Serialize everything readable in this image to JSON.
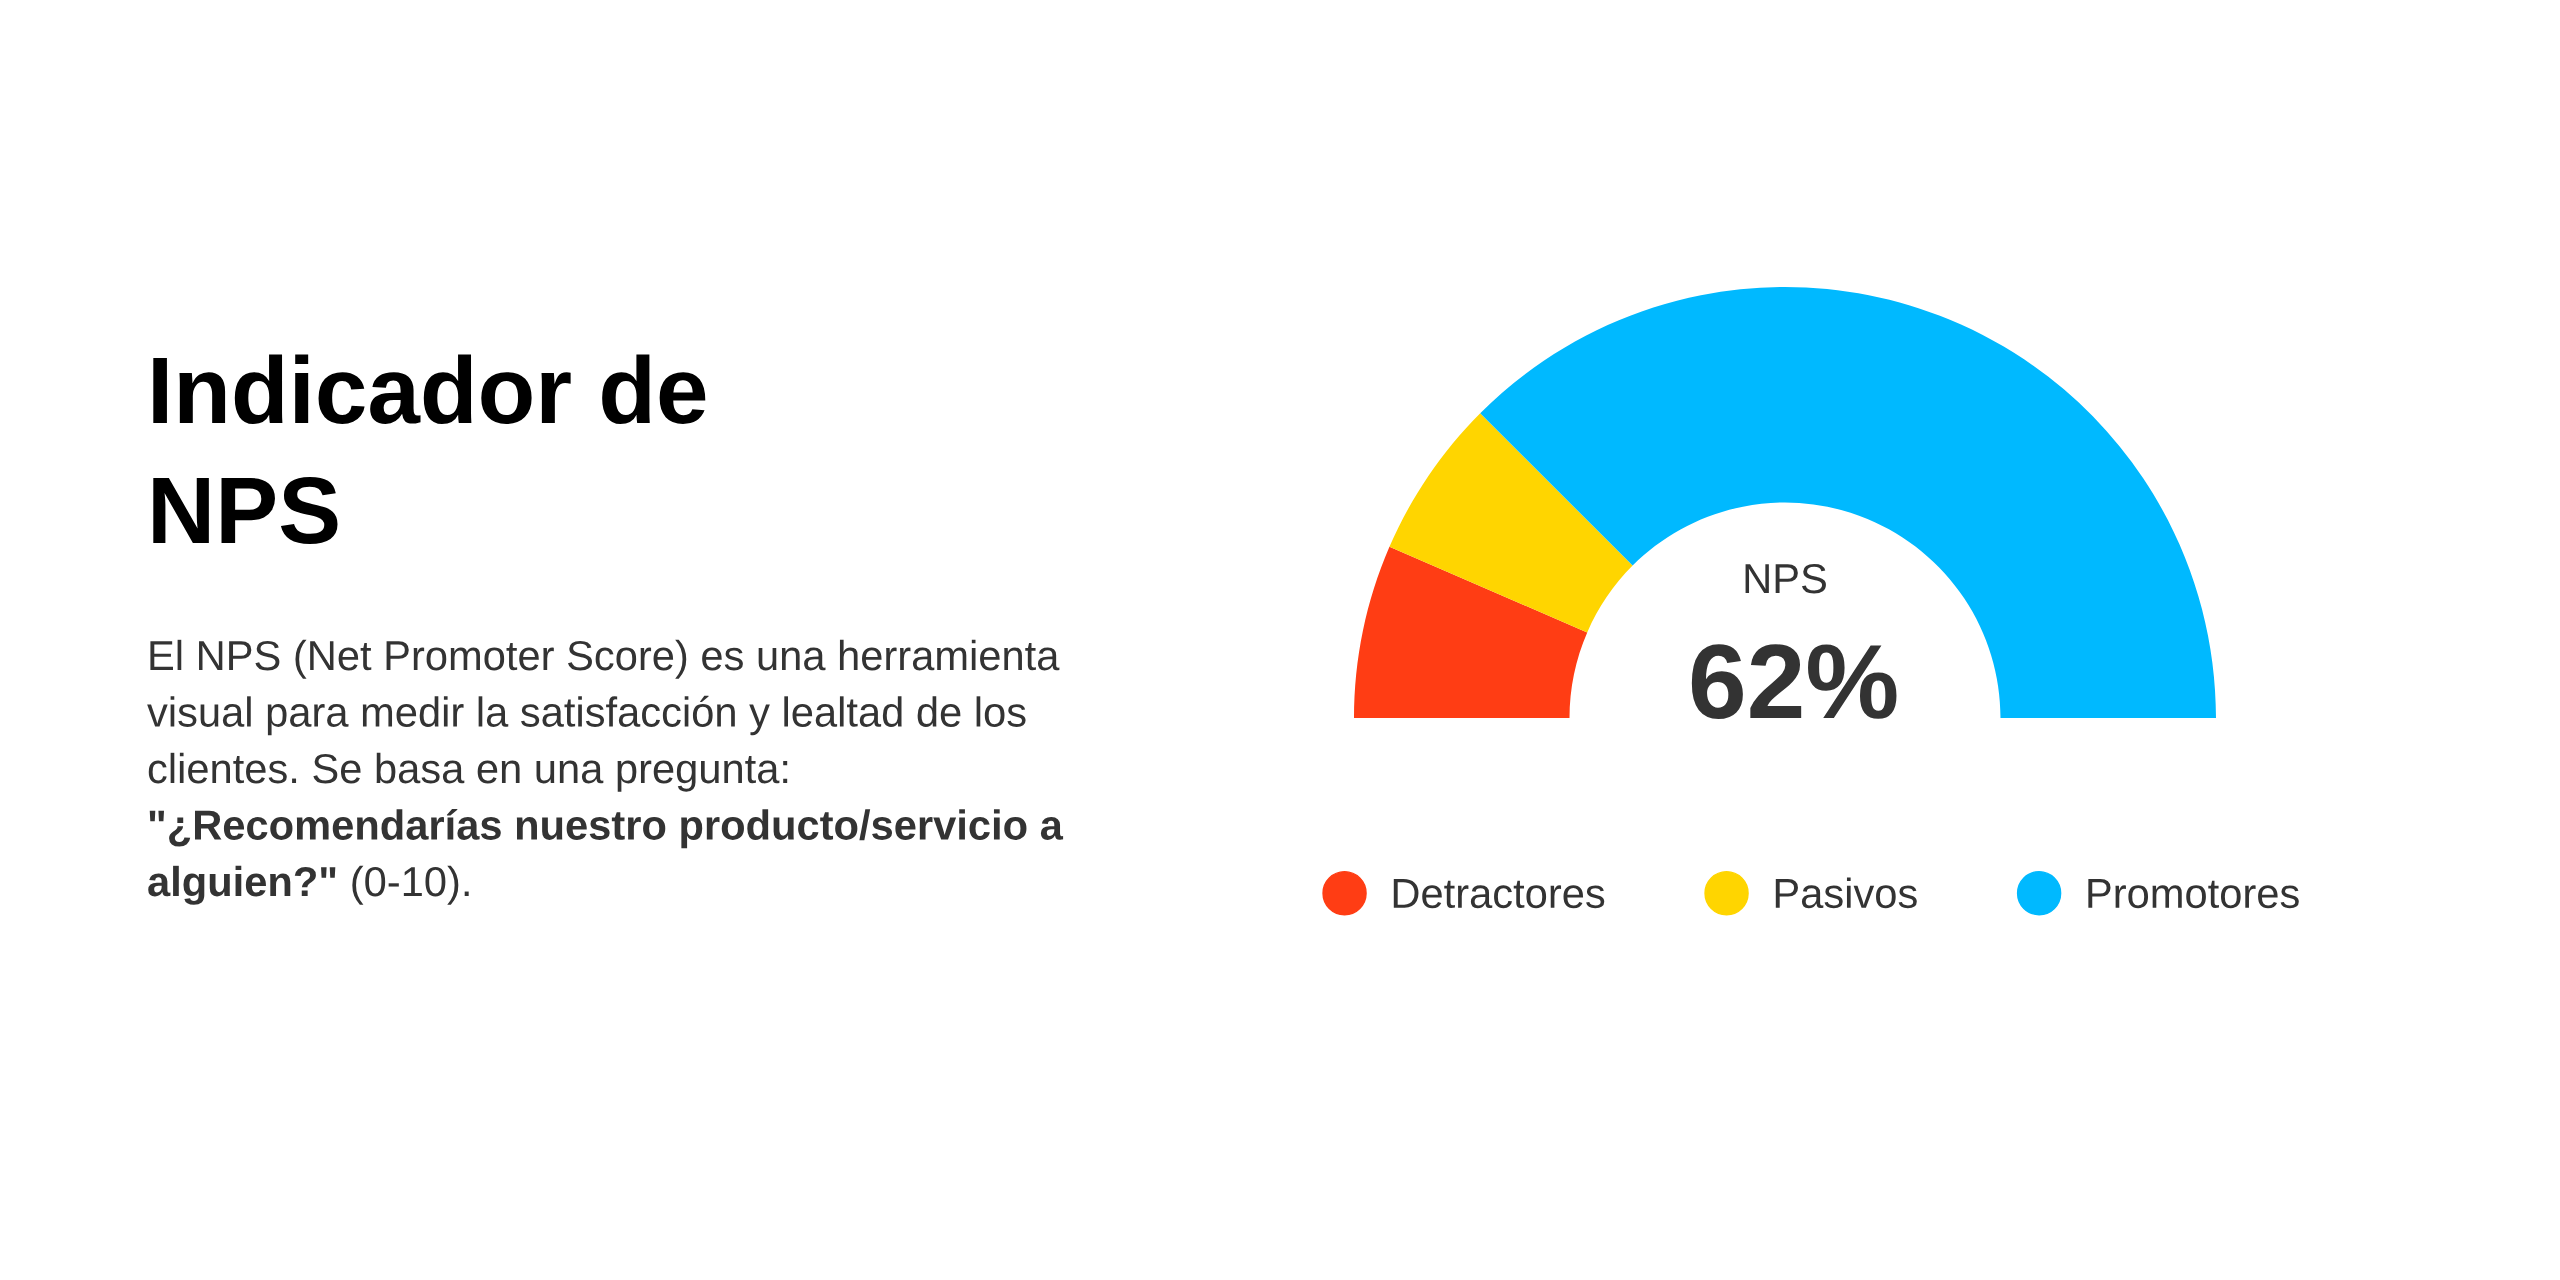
{
  "chart_data": {
    "type": "donut",
    "title": "Indicador de NPS",
    "subtitle": "El NPS (Net Promoter Score) es una herramienta visual para medir la satisfacción y lealtad de los clientes. Se basa en una pregunta:",
    "annotations": [
      "NPS",
      "62%",
      "\"¿Recomendarías nuestro producto/servicio a",
      "alguien?\"",
      "(0-10)."
    ],
    "categories": [
      "Detractores",
      "Pasivos",
      "Promotores"
    ],
    "values": [
      13,
      12,
      75
    ],
    "colors": [
      "#ff3d14",
      "#ffd500",
      "#00b9ff"
    ],
    "legend": "bottom"
  }
}
